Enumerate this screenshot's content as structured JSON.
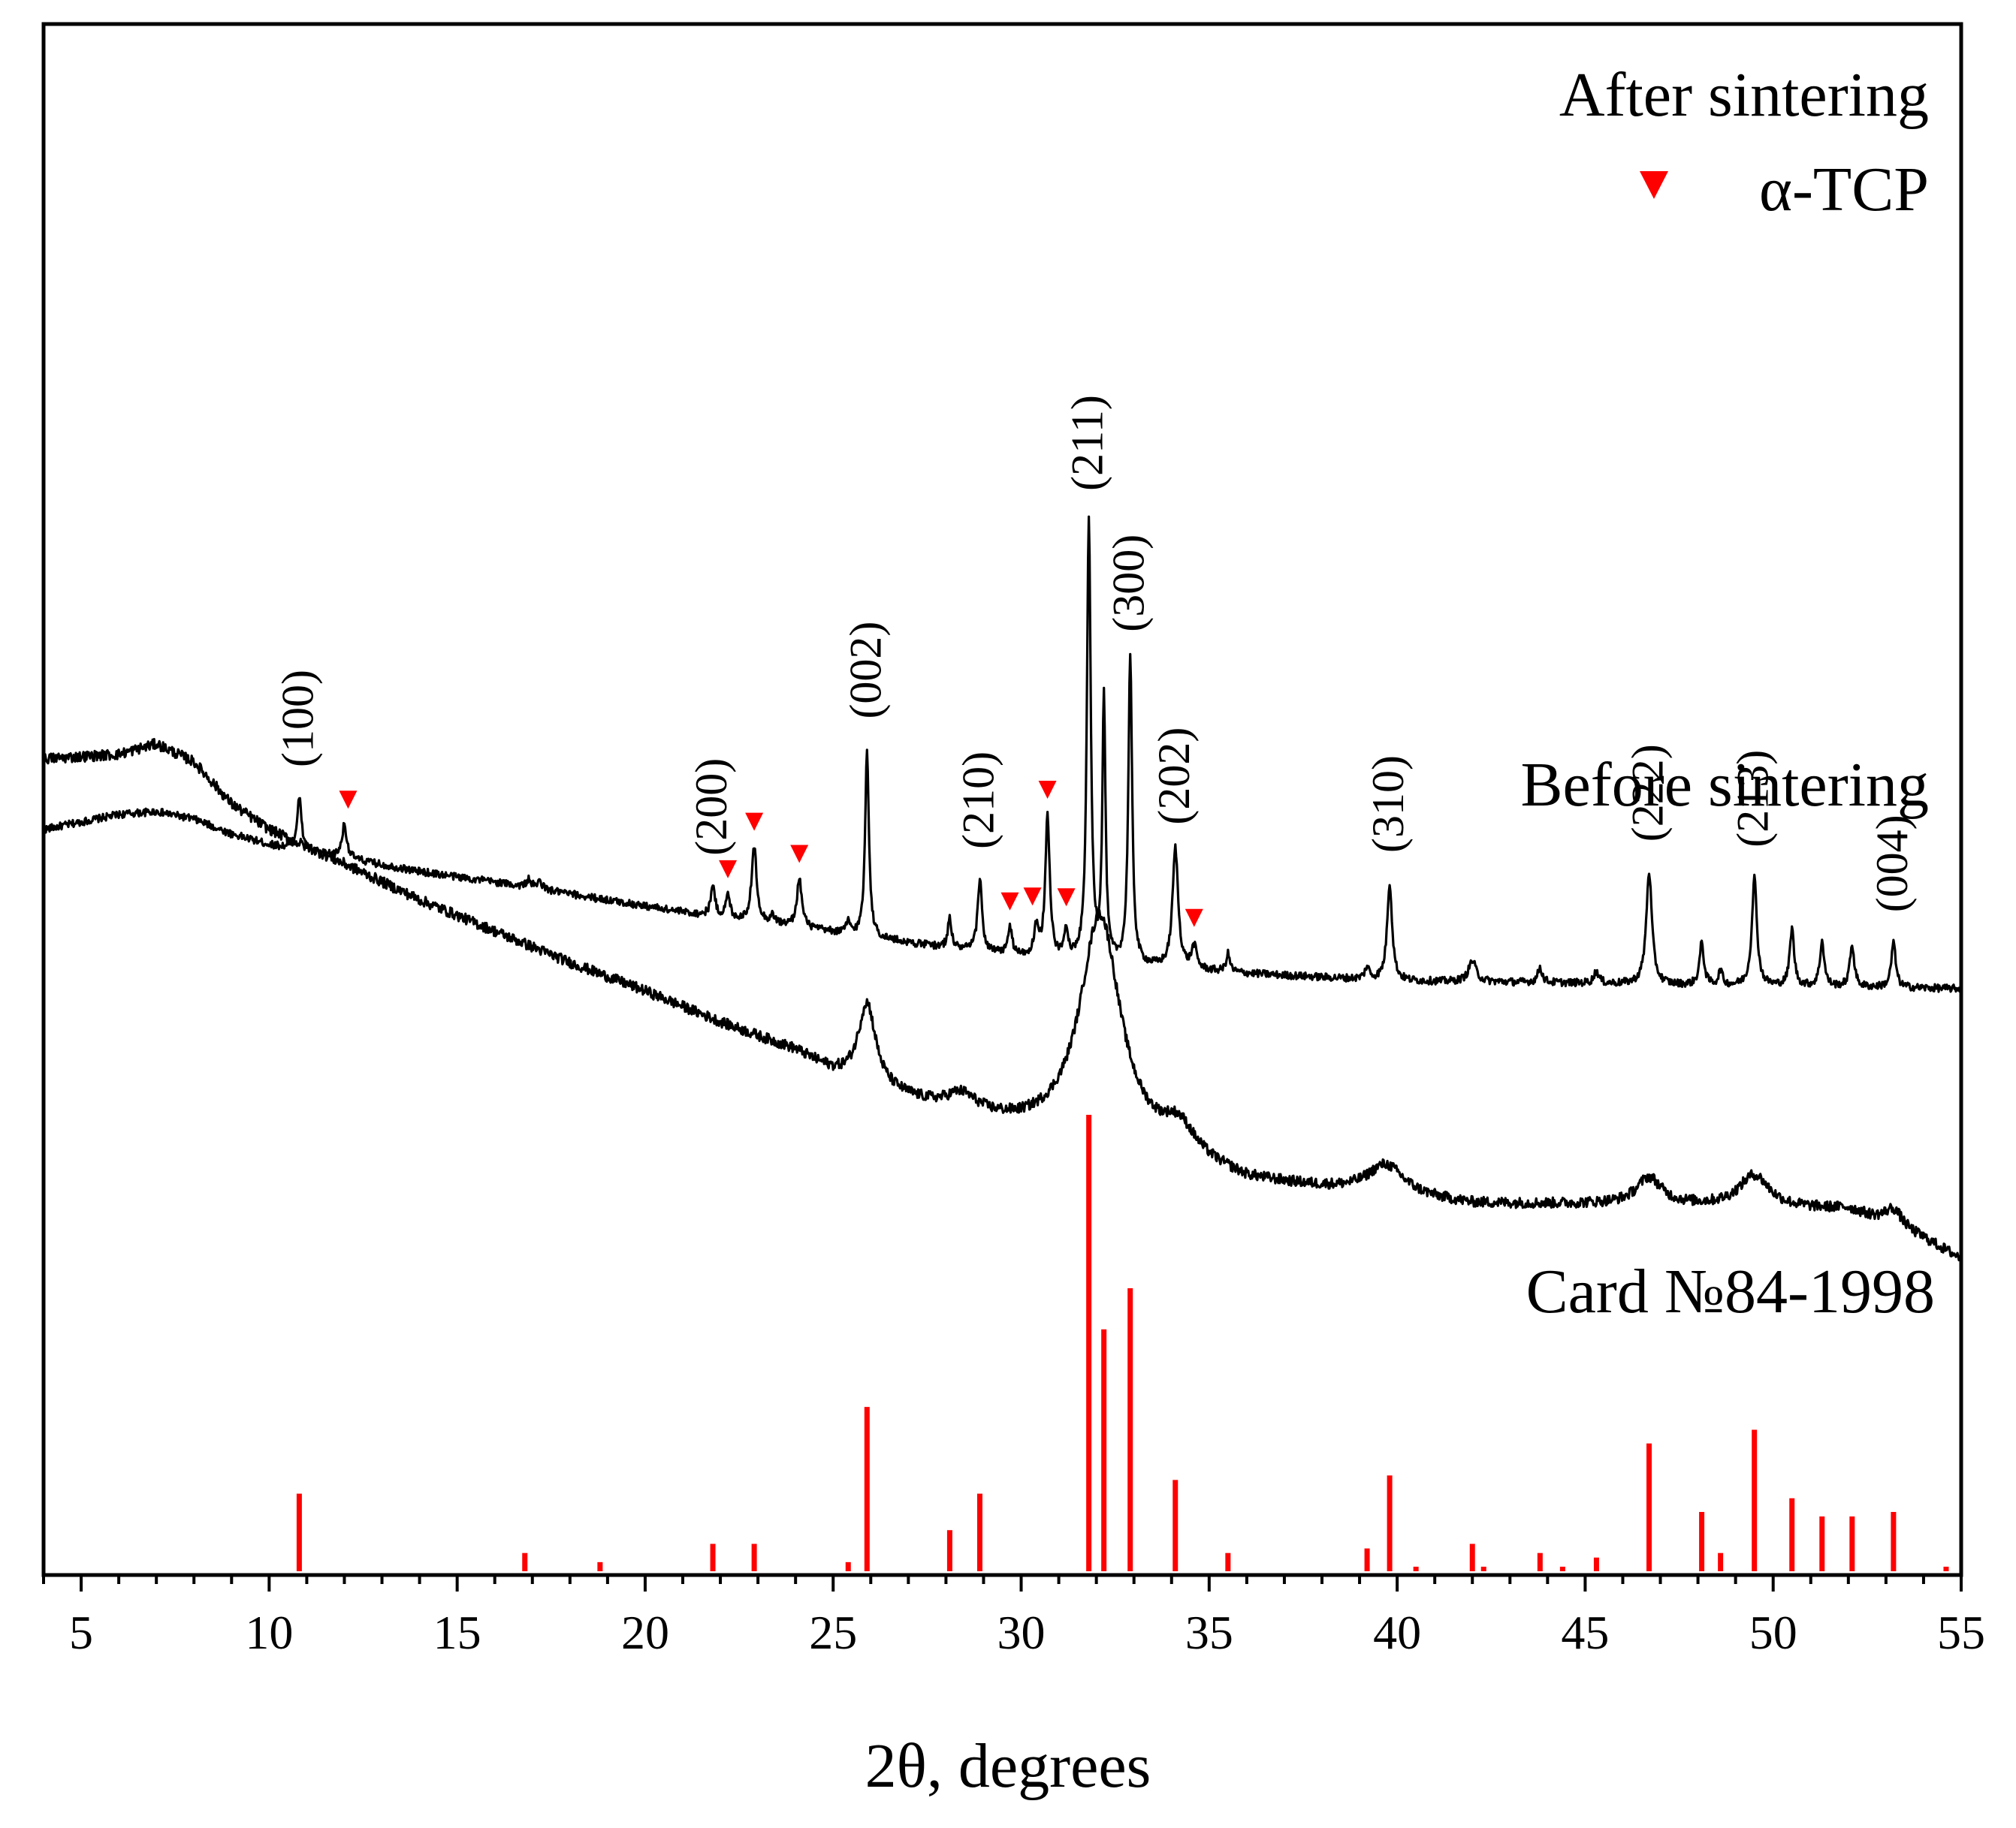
{
  "chart_data": {
    "type": "line",
    "title": "",
    "xlabel": "2θ, degrees",
    "ylabel": "",
    "xlim": [
      4,
      55
    ],
    "xticks": [
      "5",
      "10",
      "15",
      "20",
      "25",
      "30",
      "35",
      "40",
      "45",
      "50",
      "55"
    ],
    "y_axis_ticks": false,
    "grid": false,
    "series": [
      {
        "name": "After sintering",
        "color": "#000000",
        "offset": 3.1,
        "background": [
          [
            4.0,
            1.45
          ],
          [
            6.0,
            1.55
          ],
          [
            7.0,
            1.57
          ],
          [
            8.0,
            1.52
          ],
          [
            9.0,
            1.42
          ],
          [
            10.0,
            1.35
          ],
          [
            12.0,
            1.26
          ],
          [
            14.0,
            1.17
          ],
          [
            16.0,
            1.1
          ],
          [
            18.0,
            1.02
          ],
          [
            20.0,
            0.94
          ],
          [
            22.0,
            0.86
          ],
          [
            24.0,
            0.8
          ],
          [
            26.0,
            0.73
          ],
          [
            28.0,
            0.66
          ],
          [
            30.0,
            0.6
          ],
          [
            32.0,
            0.56
          ],
          [
            34.0,
            0.52
          ],
          [
            36.0,
            0.49
          ],
          [
            40.0,
            0.44
          ],
          [
            44.0,
            0.43
          ],
          [
            48.0,
            0.41
          ],
          [
            52.0,
            0.4
          ],
          [
            55.0,
            0.39
          ]
        ],
        "peaks": [
          {
            "x": 10.8,
            "h": 0.35,
            "w": 0.07
          },
          {
            "x": 12.0,
            "h": 0.22,
            "w": 0.08
          },
          {
            "x": 16.9,
            "h": 0.05,
            "w": 0.08
          },
          {
            "x": 17.2,
            "h": 0.05,
            "w": 0.08
          },
          {
            "x": 21.8,
            "h": 0.2,
            "w": 0.07
          },
          {
            "x": 22.2,
            "h": 0.15,
            "w": 0.07
          },
          {
            "x": 22.9,
            "h": 0.5,
            "w": 0.08
          },
          {
            "x": 23.4,
            "h": 0.05,
            "w": 0.08
          },
          {
            "x": 24.1,
            "h": 0.32,
            "w": 0.08
          },
          {
            "x": 25.4,
            "h": 0.08,
            "w": 0.06
          },
          {
            "x": 25.9,
            "h": 1.25,
            "w": 0.06
          },
          {
            "x": 28.1,
            "h": 0.2,
            "w": 0.06
          },
          {
            "x": 28.9,
            "h": 0.48,
            "w": 0.07
          },
          {
            "x": 29.7,
            "h": 0.18,
            "w": 0.07
          },
          {
            "x": 30.4,
            "h": 0.18,
            "w": 0.07
          },
          {
            "x": 30.7,
            "h": 0.95,
            "w": 0.07
          },
          {
            "x": 31.2,
            "h": 0.2,
            "w": 0.06
          },
          {
            "x": 31.8,
            "h": 2.95,
            "w": 0.06
          },
          {
            "x": 32.2,
            "h": 1.75,
            "w": 0.05
          },
          {
            "x": 32.9,
            "h": 2.05,
            "w": 0.06
          },
          {
            "x": 34.1,
            "h": 0.8,
            "w": 0.09
          },
          {
            "x": 34.6,
            "h": 0.15,
            "w": 0.08
          },
          {
            "x": 35.5,
            "h": 0.12,
            "w": 0.06
          },
          {
            "x": 39.2,
            "h": 0.08,
            "w": 0.07
          },
          {
            "x": 39.8,
            "h": 0.65,
            "w": 0.08
          },
          {
            "x": 42.0,
            "h": 0.14,
            "w": 0.12
          },
          {
            "x": 43.8,
            "h": 0.1,
            "w": 0.07
          },
          {
            "x": 45.3,
            "h": 0.08,
            "w": 0.08
          },
          {
            "x": 46.7,
            "h": 0.75,
            "w": 0.09
          },
          {
            "x": 48.1,
            "h": 0.28,
            "w": 0.07
          },
          {
            "x": 48.6,
            "h": 0.1,
            "w": 0.06
          },
          {
            "x": 49.5,
            "h": 0.72,
            "w": 0.08
          },
          {
            "x": 50.5,
            "h": 0.38,
            "w": 0.07
          },
          {
            "x": 51.3,
            "h": 0.3,
            "w": 0.07
          },
          {
            "x": 52.1,
            "h": 0.28,
            "w": 0.07
          },
          {
            "x": 53.2,
            "h": 0.3,
            "w": 0.07
          }
        ]
      },
      {
        "name": "Before sintering",
        "color": "#000000",
        "offset": 0,
        "background": [
          [
            4.0,
            5.02
          ],
          [
            6.0,
            5.05
          ],
          [
            7.0,
            5.12
          ],
          [
            8.0,
            5.0
          ],
          [
            9.0,
            4.72
          ],
          [
            10.0,
            4.55
          ],
          [
            12.0,
            4.32
          ],
          [
            14.0,
            4.08
          ],
          [
            16.0,
            3.87
          ],
          [
            18.0,
            3.66
          ],
          [
            20.0,
            3.47
          ],
          [
            22.0,
            3.26
          ],
          [
            24.0,
            3.07
          ],
          [
            25.0,
            2.92
          ],
          [
            26.0,
            2.82
          ],
          [
            28.0,
            2.66
          ],
          [
            30.0,
            2.55
          ],
          [
            32.0,
            2.48
          ],
          [
            34.0,
            2.36
          ],
          [
            36.0,
            2.2
          ],
          [
            38.0,
            2.15
          ],
          [
            40.0,
            2.1
          ],
          [
            42.0,
            2.05
          ],
          [
            44.0,
            2.05
          ],
          [
            46.0,
            2.05
          ],
          [
            48.0,
            2.04
          ],
          [
            50.0,
            2.02
          ],
          [
            52.0,
            2.02
          ],
          [
            54.0,
            1.82
          ],
          [
            55.0,
            1.69
          ]
        ],
        "peaks": [
          {
            "x": 25.9,
            "h": 0.55,
            "w": 0.28
          },
          {
            "x": 28.4,
            "h": 0.12,
            "w": 0.5
          },
          {
            "x": 32.1,
            "h": 1.5,
            "w": 0.65
          },
          {
            "x": 34.2,
            "h": 0.18,
            "w": 0.5
          },
          {
            "x": 39.7,
            "h": 0.2,
            "w": 0.6
          },
          {
            "x": 46.7,
            "h": 0.18,
            "w": 0.4
          },
          {
            "x": 49.5,
            "h": 0.22,
            "w": 0.5
          },
          {
            "x": 53.2,
            "h": 0.12,
            "w": 0.3
          }
        ]
      }
    ],
    "reference_bars": {
      "name": "Card №84-1998",
      "color": "#ff0000",
      "bars": [
        [
          10.8,
          0.17
        ],
        [
          16.8,
          0.04
        ],
        [
          18.8,
          0.02
        ],
        [
          21.8,
          0.06
        ],
        [
          22.9,
          0.06
        ],
        [
          25.4,
          0.02
        ],
        [
          25.9,
          0.36
        ],
        [
          28.1,
          0.09
        ],
        [
          28.9,
          0.17
        ],
        [
          31.8,
          1.0
        ],
        [
          32.2,
          0.53
        ],
        [
          32.9,
          0.62
        ],
        [
          34.1,
          0.2
        ],
        [
          35.5,
          0.04
        ],
        [
          39.2,
          0.05
        ],
        [
          39.8,
          0.21
        ],
        [
          40.5,
          0.01
        ],
        [
          42.0,
          0.06
        ],
        [
          42.3,
          0.01
        ],
        [
          43.8,
          0.04
        ],
        [
          44.4,
          0.01
        ],
        [
          45.3,
          0.03
        ],
        [
          46.7,
          0.28
        ],
        [
          48.1,
          0.13
        ],
        [
          48.6,
          0.04
        ],
        [
          49.5,
          0.31
        ],
        [
          50.5,
          0.16
        ],
        [
          51.3,
          0.12
        ],
        [
          52.1,
          0.12
        ],
        [
          53.2,
          0.13
        ],
        [
          54.6,
          0.01
        ]
      ]
    },
    "miller_indices": [
      {
        "label": "(100)",
        "x": 10.8
      },
      {
        "label": "(200)",
        "x": 21.8
      },
      {
        "label": "(002)",
        "x": 25.9
      },
      {
        "label": "(210)",
        "x": 28.9
      },
      {
        "label": "(211)",
        "x": 31.8
      },
      {
        "label": "(300)",
        "x": 32.9
      },
      {
        "label": "(202)",
        "x": 34.1
      },
      {
        "label": "(310)",
        "x": 39.8
      },
      {
        "label": "(222)",
        "x": 46.7
      },
      {
        "label": "(213)",
        "x": 49.5
      },
      {
        "label": "(004)",
        "x": 53.2
      }
    ],
    "alpha_tcp_markers": [
      12.1,
      22.2,
      22.9,
      24.1,
      29.7,
      30.3,
      30.7,
      31.2,
      34.6
    ],
    "legend": {
      "symbol": "▼",
      "label": "α-TCP",
      "color": "#ff0000",
      "position": "top-right"
    }
  }
}
